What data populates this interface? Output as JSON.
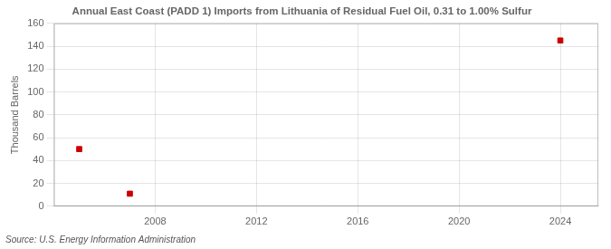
{
  "chart_data": {
    "type": "scatter",
    "title": "Annual East Coast (PADD 1) Imports from Lithuania of Residual Fuel Oil, 0.31 to 1.00% Sulfur",
    "ylabel": "Thousand Barrels",
    "source": "Source: U.S. Energy Information Administration",
    "x": [
      2005,
      2007,
      2024
    ],
    "values": [
      50,
      11,
      145
    ],
    "color": "#cc0000",
    "marker": "square",
    "xlim": [
      2004.0,
      2025.5
    ],
    "xticks": [
      2008,
      2012,
      2016,
      2020,
      2024
    ],
    "ylim": [
      0,
      160
    ],
    "yticks": [
      0,
      20,
      40,
      60,
      80,
      100,
      120,
      140,
      160
    ],
    "grid": true
  }
}
